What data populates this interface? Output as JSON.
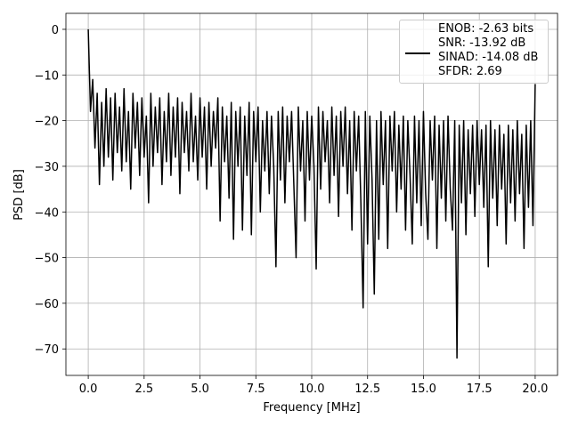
{
  "chart_data": {
    "type": "line",
    "x_label": "Frequency [MHz]",
    "y_label": "PSD [dB]",
    "x": [
      0,
      0.1,
      0.2,
      0.3,
      0.4,
      0.5,
      0.6,
      0.7,
      0.8,
      0.9,
      1,
      1.1,
      1.2,
      1.3,
      1.4,
      1.5,
      1.6,
      1.7,
      1.8,
      1.9,
      2,
      2.1,
      2.2,
      2.3,
      2.4,
      2.5,
      2.6,
      2.7,
      2.8,
      2.9,
      3,
      3.1,
      3.2,
      3.3,
      3.4,
      3.5,
      3.6,
      3.7,
      3.8,
      3.9,
      4,
      4.1,
      4.2,
      4.3,
      4.4,
      4.5,
      4.6,
      4.7,
      4.8,
      4.9,
      5,
      5.1,
      5.2,
      5.3,
      5.4,
      5.5,
      5.6,
      5.7,
      5.8,
      5.9,
      6,
      6.1,
      6.2,
      6.3,
      6.4,
      6.5,
      6.6,
      6.7,
      6.8,
      6.9,
      7,
      7.1,
      7.2,
      7.3,
      7.4,
      7.5,
      7.6,
      7.7,
      7.8,
      7.9,
      8,
      8.1,
      8.2,
      8.3,
      8.4,
      8.5,
      8.6,
      8.7,
      8.8,
      8.9,
      9,
      9.1,
      9.2,
      9.3,
      9.4,
      9.5,
      9.6,
      9.7,
      9.8,
      9.9,
      10,
      10.1,
      10.2,
      10.3,
      10.4,
      10.5,
      10.6,
      10.7,
      10.8,
      10.9,
      11,
      11.1,
      11.2,
      11.3,
      11.4,
      11.5,
      11.6,
      11.7,
      11.8,
      11.9,
      12,
      12.1,
      12.2,
      12.3,
      12.4,
      12.5,
      12.6,
      12.7,
      12.8,
      12.9,
      13,
      13.1,
      13.2,
      13.3,
      13.4,
      13.5,
      13.6,
      13.7,
      13.8,
      13.9,
      14,
      14.1,
      14.2,
      14.3,
      14.4,
      14.5,
      14.6,
      14.7,
      14.8,
      14.9,
      15,
      15.1,
      15.2,
      15.3,
      15.4,
      15.5,
      15.6,
      15.7,
      15.8,
      15.9,
      16,
      16.1,
      16.2,
      16.3,
      16.4,
      16.5,
      16.6,
      16.7,
      16.8,
      16.9,
      17,
      17.1,
      17.2,
      17.3,
      17.4,
      17.5,
      17.6,
      17.7,
      17.8,
      17.9,
      18,
      18.1,
      18.2,
      18.3,
      18.4,
      18.5,
      18.6,
      18.7,
      18.8,
      18.9,
      19,
      19.1,
      19.2,
      19.3,
      19.4,
      19.5,
      19.6,
      19.7,
      19.8,
      19.9,
      20
    ],
    "series": [
      {
        "name": "ENOB: -2.63 bits\nSNR: -13.92 dB\nSINAD: -14.08 dB\nSFDR: 2.69",
        "color": "#000000",
        "values": [
          0,
          -18,
          -11,
          -26,
          -14,
          -34,
          -16,
          -30,
          -13,
          -28,
          -15,
          -33,
          -14,
          -27,
          -17,
          -31,
          -13,
          -29,
          -18,
          -35,
          -14,
          -26,
          -16,
          -32,
          -15,
          -28,
          -19,
          -38,
          -14,
          -30,
          -17,
          -27,
          -15,
          -34,
          -18,
          -29,
          -14,
          -32,
          -17,
          -28,
          -15,
          -36,
          -16,
          -27,
          -18,
          -31,
          -14,
          -29,
          -19,
          -33,
          -15,
          -28,
          -17,
          -35,
          -16,
          -30,
          -18,
          -26,
          -15,
          -42,
          -17,
          -29,
          -19,
          -37,
          -16,
          -46,
          -18,
          -30,
          -17,
          -44,
          -19,
          -32,
          -16,
          -45,
          -18,
          -29,
          -17,
          -40,
          -20,
          -31,
          -18,
          -36,
          -19,
          -30,
          -52,
          -18,
          -33,
          -17,
          -38,
          -19,
          -29,
          -18,
          -34,
          -50,
          -17,
          -31,
          -20,
          -42,
          -18,
          -33,
          -19,
          -30,
          -52.5,
          -17,
          -35,
          -18,
          -29,
          -20,
          -38,
          -17,
          -32,
          -19,
          -41,
          -18,
          -30,
          -17,
          -36,
          -20,
          -44,
          -18,
          -31,
          -19,
          -38,
          -61,
          -18,
          -47,
          -19,
          -33,
          -58,
          -20,
          -46,
          -18,
          -34,
          -20,
          -48,
          -19,
          -31,
          -18,
          -40,
          -21,
          -35,
          -19,
          -44,
          -20,
          -32,
          -47,
          -19,
          -38,
          -20,
          -43,
          -18,
          -36,
          -46,
          -20,
          -33,
          -19,
          -48,
          -21,
          -37,
          -20,
          -42,
          -19,
          -35,
          -44,
          -20,
          -72,
          -21,
          -38,
          -20,
          -45,
          -22,
          -36,
          -21,
          -41,
          -20,
          -34,
          -22,
          -39,
          -21,
          -52,
          -20,
          -37,
          -22,
          -43,
          -21,
          -35,
          -23,
          -47,
          -21,
          -38,
          -22,
          -42,
          -20,
          -36,
          -23,
          -48,
          -21,
          -39,
          -20,
          -43,
          -12
        ]
      }
    ],
    "xlim": [
      -1,
      21
    ],
    "ylim": [
      -75.8,
      3.5
    ],
    "xticks": [
      {
        "value": 0,
        "label": "0.0"
      },
      {
        "value": 2.5,
        "label": "2.5"
      },
      {
        "value": 5,
        "label": "5.0"
      },
      {
        "value": 7.5,
        "label": "7.5"
      },
      {
        "value": 10,
        "label": "10.0"
      },
      {
        "value": 12.5,
        "label": "12.5"
      },
      {
        "value": 15,
        "label": "15.0"
      },
      {
        "value": 17.5,
        "label": "17.5"
      },
      {
        "value": 20,
        "label": "20.0"
      }
    ],
    "yticks": [
      0,
      {
        "value": -10,
        "label": "−10"
      },
      {
        "value": -20,
        "label": "−20"
      },
      {
        "value": -30,
        "label": "−30"
      },
      {
        "value": -40,
        "label": "−40"
      },
      {
        "value": -50,
        "label": "−50"
      },
      {
        "value": -60,
        "label": "−60"
      },
      {
        "value": -70,
        "label": "−70"
      }
    ],
    "grid": true,
    "legend": "upper right"
  }
}
